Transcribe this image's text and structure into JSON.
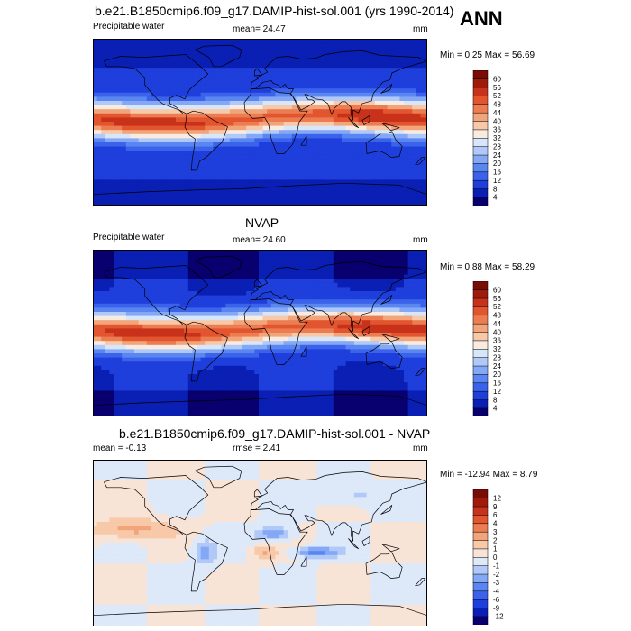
{
  "season": "ANN",
  "panels": [
    {
      "title": "b.e21.B1850cmip6.f09_g17.DAMIP-hist-sol.001 (yrs 1990-2014)",
      "left_label": "Precipitable water",
      "mean_text": "mean=  24.47",
      "units": "mm",
      "minmax": "Min =   0.25 Max =  56.69",
      "colorbar_labels": [
        "60",
        "56",
        "52",
        "48",
        "44",
        "40",
        "36",
        "32",
        "28",
        "24",
        "20",
        "16",
        "12",
        "8",
        "4"
      ],
      "colors": [
        "#08006e",
        "#0a1fb4",
        "#1f3fdc",
        "#3a62eb",
        "#5a86f1",
        "#84a8f5",
        "#b0c9f8",
        "#d8e6fa",
        "#f8ebdf",
        "#f8c9a8",
        "#f2a47a",
        "#ec7c52",
        "#e2552e",
        "#c8321a",
        "#a01a0c",
        "#7a0c06"
      ]
    },
    {
      "title": "NVAP",
      "left_label": "Precipitable water",
      "mean_text": "mean=  24.60",
      "units": "mm",
      "minmax": "Min =   0.88 Max =  58.29",
      "colorbar_labels": [
        "60",
        "56",
        "52",
        "48",
        "44",
        "40",
        "36",
        "32",
        "28",
        "24",
        "20",
        "16",
        "12",
        "8",
        "4"
      ],
      "colors": [
        "#08006e",
        "#0a1fb4",
        "#1f3fdc",
        "#3a62eb",
        "#5a86f1",
        "#84a8f5",
        "#b0c9f8",
        "#d8e6fa",
        "#f8ebdf",
        "#f8c9a8",
        "#f2a47a",
        "#ec7c52",
        "#e2552e",
        "#c8321a",
        "#a01a0c",
        "#7a0c06"
      ]
    },
    {
      "title": "b.e21.B1850cmip6.f09_g17.DAMIP-hist-sol.001 - NVAP",
      "left_label": "mean =  -0.13",
      "mean_text": "rmse =   2.41",
      "units": "mm",
      "minmax": "Min = -12.94 Max =   8.79",
      "colorbar_labels": [
        "12",
        "9",
        "6",
        "4",
        "3",
        "2",
        "1",
        "0",
        "-1",
        "-2",
        "-3",
        "-4",
        "-6",
        "-9",
        "-12"
      ],
      "colors": [
        "#08006e",
        "#0a1fb4",
        "#1f3fdc",
        "#3a62eb",
        "#5a86f1",
        "#84a8f5",
        "#b0c9f8",
        "#dde8f8",
        "#f8e4d6",
        "#f8c9a8",
        "#f2a47a",
        "#ec7c52",
        "#e2552e",
        "#c8321a",
        "#a01a0c",
        "#7a0c06"
      ]
    }
  ],
  "chart_data": [
    {
      "type": "heatmap",
      "title": "b.e21.B1850cmip6.f09_g17.DAMIP-hist-sol.001 (yrs 1990-2014)",
      "variable": "Precipitable water",
      "units": "mm",
      "mean": 24.47,
      "min": 0.25,
      "max": 56.69,
      "levels": [
        4,
        8,
        12,
        16,
        20,
        24,
        28,
        32,
        36,
        40,
        44,
        48,
        52,
        56,
        60
      ]
    },
    {
      "type": "heatmap",
      "title": "NVAP",
      "variable": "Precipitable water",
      "units": "mm",
      "mean": 24.6,
      "min": 0.88,
      "max": 58.29,
      "levels": [
        4,
        8,
        12,
        16,
        20,
        24,
        28,
        32,
        36,
        40,
        44,
        48,
        52,
        56,
        60
      ]
    },
    {
      "type": "heatmap",
      "title": "b.e21.B1850cmip6.f09_g17.DAMIP-hist-sol.001 - NVAP",
      "units": "mm",
      "mean": -0.13,
      "rmse": 2.41,
      "min": -12.94,
      "max": 8.79,
      "levels": [
        -12,
        -9,
        -6,
        -4,
        -3,
        -2,
        -1,
        0,
        1,
        2,
        3,
        4,
        6,
        9,
        12
      ]
    }
  ]
}
